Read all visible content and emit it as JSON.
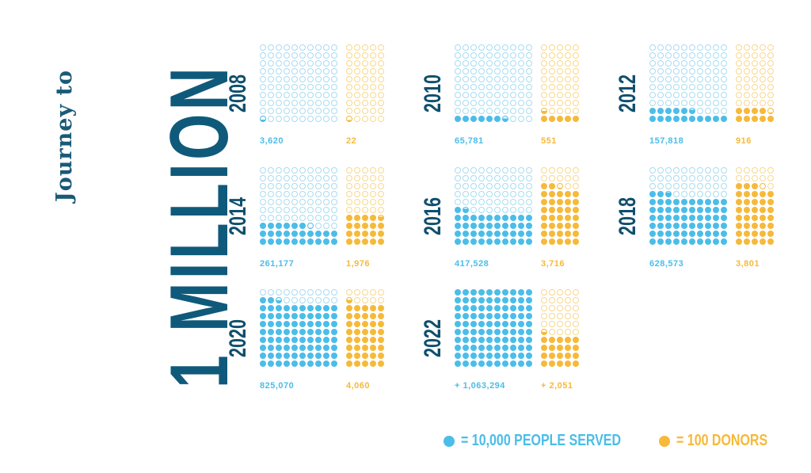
{
  "title": {
    "line1": "Journey to",
    "line2": "1 MILLION"
  },
  "colors": {
    "people": "#4bbde8",
    "donors": "#f6b93a",
    "title": "#0f5a7a",
    "year": "#0f4f6e"
  },
  "legend": {
    "people": {
      "icon": "blue-circle",
      "label": "= 10,000 PEOPLE SERVED"
    },
    "donors": {
      "icon": "orange-circle",
      "label": "= 100 DONORS"
    }
  },
  "panels": [
    {
      "year": "2008",
      "people_label": "3,620",
      "donors_label": "22"
    },
    {
      "year": "2010",
      "people_label": "65,781",
      "donors_label": "551"
    },
    {
      "year": "2012",
      "people_label": "157,818",
      "donors_label": "916"
    },
    {
      "year": "2014",
      "people_label": "261,177",
      "donors_label": "1,976"
    },
    {
      "year": "2016",
      "people_label": "417,528",
      "donors_label": "3,716"
    },
    {
      "year": "2018",
      "people_label": "628,573",
      "donors_label": "3,801"
    },
    {
      "year": "2020",
      "people_label": "825,070",
      "donors_label": "4,060"
    },
    {
      "year": "2022",
      "people_label": "+ 1,063,294",
      "donors_label": "+ 2,051"
    }
  ],
  "chart_data": {
    "type": "pictogram",
    "title": "Journey to 1 MILLION",
    "units": {
      "people_dot": 10000,
      "donor_dot": 100
    },
    "grid": {
      "people": {
        "cols": 10,
        "rows": 10,
        "max": 1000000
      },
      "donors": {
        "cols": 5,
        "rows": 10,
        "max": 5000
      }
    },
    "categories": [
      "2008",
      "2010",
      "2012",
      "2014",
      "2016",
      "2018",
      "2020",
      "2022"
    ],
    "series": [
      {
        "name": "People Served",
        "values": [
          3620,
          65781,
          157818,
          261177,
          417528,
          628573,
          825070,
          1063294
        ]
      },
      {
        "name": "Donors",
        "values": [
          22,
          551,
          916,
          1976,
          3716,
          3801,
          4060,
          2051
        ]
      }
    ],
    "legend": [
      "= 10,000 PEOPLE SERVED",
      "= 100 DONORS"
    ]
  }
}
